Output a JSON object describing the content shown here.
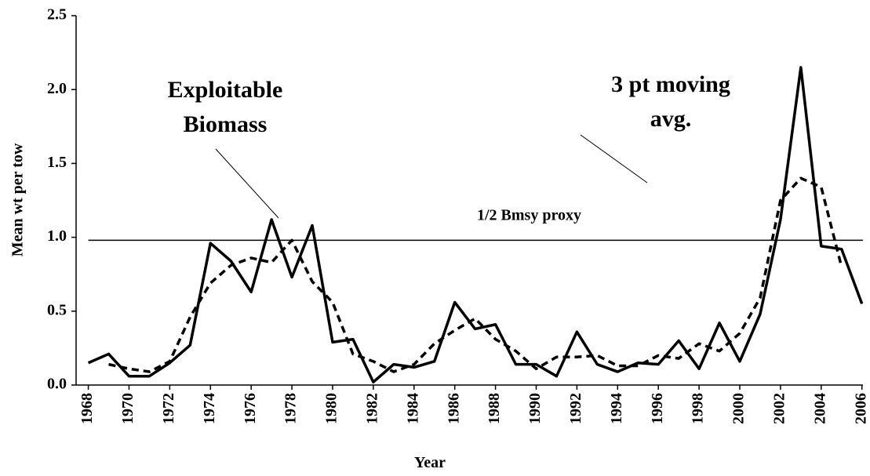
{
  "chart_data": {
    "type": "line",
    "x_label": "Year",
    "y_label": "Mean wt per tow",
    "x": [
      1968,
      1969,
      1970,
      1971,
      1972,
      1973,
      1974,
      1975,
      1976,
      1977,
      1978,
      1979,
      1980,
      1981,
      1982,
      1983,
      1984,
      1985,
      1986,
      1987,
      1988,
      1989,
      1990,
      1991,
      1992,
      1993,
      1994,
      1995,
      1996,
      1997,
      1998,
      1999,
      2000,
      2001,
      2002,
      2003,
      2004,
      2005,
      2006
    ],
    "series": [
      {
        "name": "Exploitable Biomass",
        "color": "#000000",
        "dash": false,
        "values": [
          0.15,
          0.21,
          0.06,
          0.06,
          0.15,
          0.27,
          0.96,
          0.84,
          0.63,
          1.12,
          0.73,
          1.08,
          0.29,
          0.31,
          0.02,
          0.14,
          0.12,
          0.16,
          0.56,
          0.38,
          0.41,
          0.14,
          0.14,
          0.06,
          0.36,
          0.14,
          0.09,
          0.15,
          0.14,
          0.3,
          0.11,
          0.42,
          0.16,
          0.48,
          1.12,
          2.15,
          0.94,
          0.92,
          0.55
        ]
      },
      {
        "name": "3 pt moving avg.",
        "color": "#000000",
        "dash": true,
        "values": [
          null,
          0.14,
          0.11,
          0.09,
          0.16,
          0.46,
          0.69,
          0.81,
          0.86,
          0.83,
          0.98,
          0.7,
          0.56,
          0.21,
          0.16,
          0.09,
          0.14,
          0.28,
          0.37,
          0.45,
          0.31,
          0.23,
          0.11,
          0.19,
          0.19,
          0.2,
          0.13,
          0.13,
          0.2,
          0.18,
          0.28,
          0.23,
          0.35,
          0.59,
          1.25,
          1.4,
          1.34,
          0.8,
          null
        ]
      }
    ],
    "annotations": [
      {
        "lines": [
          "Exploitable",
          "Biomass"
        ]
      },
      {
        "lines": [
          "3 pt moving",
          "avg."
        ]
      }
    ],
    "reference_line": {
      "value": 0.98,
      "label": "1/2 Bmsy proxy"
    },
    "xlim": [
      1967.4,
      2006.05
    ],
    "xticks": [
      1968,
      1970,
      1972,
      1974,
      1976,
      1978,
      1980,
      1982,
      1984,
      1986,
      1988,
      1990,
      1992,
      1994,
      1996,
      1998,
      2000,
      2002,
      2004,
      2006
    ],
    "ylim": [
      0,
      2.5
    ],
    "yticks": [
      {
        "value": 0,
        "label": "0.0"
      },
      0.5,
      {
        "value": 1,
        "label": "1.0"
      },
      1.5,
      {
        "value": 2,
        "label": "2.0"
      },
      2.5
    ]
  }
}
